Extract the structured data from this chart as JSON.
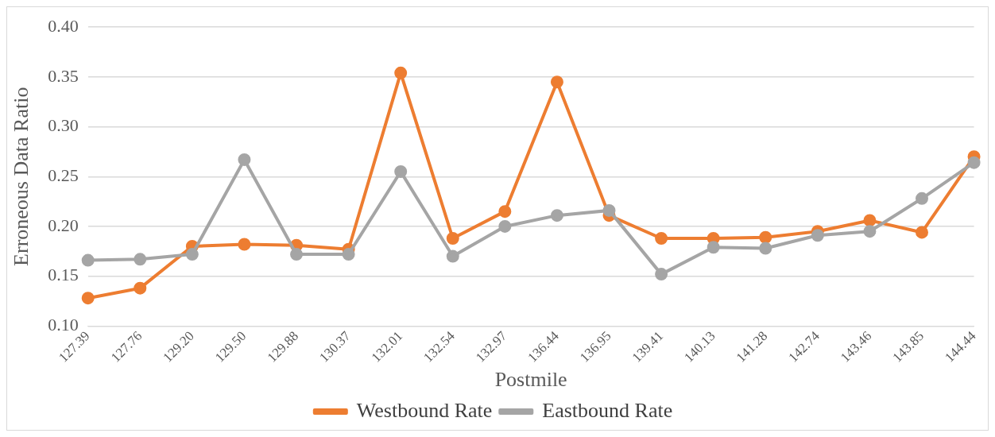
{
  "chart_data": {
    "type": "line",
    "xlabel": "Postmile",
    "ylabel": "Erroneous Data Ratio",
    "categories": [
      "127.39",
      "127.76",
      "129.20",
      "129.50",
      "129.88",
      "130.37",
      "132.01",
      "132.54",
      "132.97",
      "136.44",
      "136.95",
      "139.41",
      "140.13",
      "141.28",
      "142.74",
      "143.46",
      "143.85",
      "144.44"
    ],
    "series": [
      {
        "name": "Westbound Rate",
        "color": "#ed7d31",
        "values": [
          0.128,
          0.138,
          0.18,
          0.182,
          0.181,
          0.177,
          0.354,
          0.188,
          0.215,
          0.345,
          0.211,
          0.188,
          0.188,
          0.189,
          0.195,
          0.206,
          0.194,
          0.27
        ]
      },
      {
        "name": "Eastbound Rate",
        "color": "#a5a5a5",
        "values": [
          0.166,
          0.167,
          0.172,
          0.267,
          0.172,
          0.172,
          0.255,
          0.17,
          0.2,
          0.211,
          0.216,
          0.152,
          0.179,
          0.178,
          0.191,
          0.195,
          0.228,
          0.264
        ]
      }
    ],
    "ylim": [
      0.1,
      0.4
    ],
    "yticks": [
      {
        "value": 0.1,
        "label": "0.10"
      },
      {
        "value": 0.15,
        "label": "0.15"
      },
      {
        "value": 0.2,
        "label": "0.20"
      },
      {
        "value": 0.25,
        "label": "0.25"
      },
      {
        "value": 0.3,
        "label": "0.30"
      },
      {
        "value": 0.35,
        "label": "0.35"
      },
      {
        "value": 0.4,
        "label": "0.40"
      }
    ],
    "grid": "y",
    "legend": "bottom",
    "marker": "circle",
    "line_style": "solid"
  }
}
